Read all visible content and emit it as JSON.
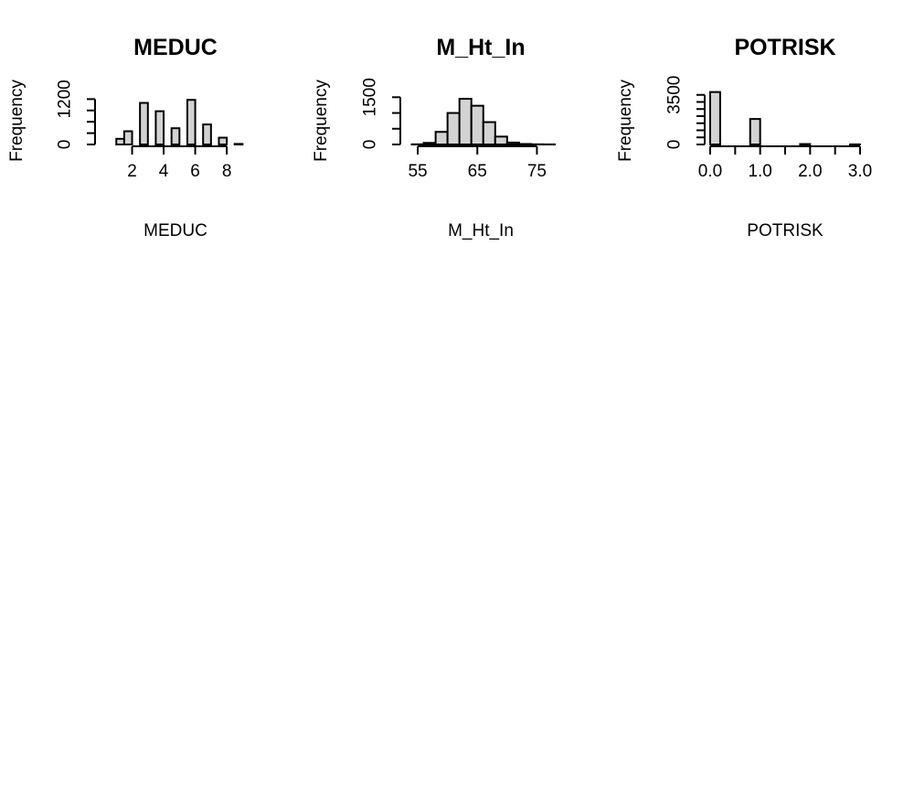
{
  "chart_data": [
    {
      "type": "bar",
      "title": "MEDUC",
      "xlabel": "MEDUC",
      "ylabel": "Frequency",
      "x_ticks": [
        2,
        4,
        6,
        8
      ],
      "x_tick_labels": [
        "2",
        "4",
        "6",
        "8"
      ],
      "y_ticks": [
        0,
        1200
      ],
      "y_tick_labels": [
        "0",
        "1200"
      ],
      "y_minor_ticks": [
        0,
        300,
        600,
        900,
        1200
      ],
      "xlim": [
        0,
        9.5
      ],
      "ylim": [
        0,
        1500
      ],
      "bins": [
        {
          "x0": 1.0,
          "x1": 1.5,
          "value": 150
        },
        {
          "x0": 1.5,
          "x1": 2.0,
          "value": 350
        },
        {
          "x0": 2.0,
          "x1": 2.5,
          "value": 0
        },
        {
          "x0": 2.5,
          "x1": 3.0,
          "value": 1100
        },
        {
          "x0": 3.0,
          "x1": 3.5,
          "value": 0
        },
        {
          "x0": 3.5,
          "x1": 4.0,
          "value": 880
        },
        {
          "x0": 4.0,
          "x1": 4.5,
          "value": 0
        },
        {
          "x0": 4.5,
          "x1": 5.0,
          "value": 430
        },
        {
          "x0": 5.0,
          "x1": 5.5,
          "value": 0
        },
        {
          "x0": 5.5,
          "x1": 6.0,
          "value": 1180
        },
        {
          "x0": 6.0,
          "x1": 6.5,
          "value": 0
        },
        {
          "x0": 6.5,
          "x1": 7.0,
          "value": 530
        },
        {
          "x0": 7.0,
          "x1": 7.5,
          "value": 0
        },
        {
          "x0": 7.5,
          "x1": 8.0,
          "value": 180
        },
        {
          "x0": 8.0,
          "x1": 8.5,
          "value": 0
        },
        {
          "x0": 8.5,
          "x1": 9.0,
          "value": 15
        }
      ]
    },
    {
      "type": "bar",
      "title": "M_Ht_In",
      "xlabel": "M_Ht_In",
      "ylabel": "Frequency",
      "x_ticks": [
        55,
        65,
        75
      ],
      "x_tick_labels": [
        "55",
        "65",
        "75"
      ],
      "y_ticks": [
        0,
        1500
      ],
      "y_tick_labels": [
        "0",
        "1500"
      ],
      "y_minor_ticks": [
        0,
        500,
        1000,
        1500
      ],
      "xlim": [
        53,
        78
      ],
      "ylim": [
        0,
        1800
      ],
      "bins": [
        {
          "x0": 54,
          "x1": 56,
          "value": 5
        },
        {
          "x0": 56,
          "x1": 58,
          "value": 50
        },
        {
          "x0": 58,
          "x1": 60,
          "value": 400
        },
        {
          "x0": 60,
          "x1": 62,
          "value": 1000
        },
        {
          "x0": 62,
          "x1": 64,
          "value": 1450
        },
        {
          "x0": 64,
          "x1": 66,
          "value": 1230
        },
        {
          "x0": 66,
          "x1": 68,
          "value": 710
        },
        {
          "x0": 68,
          "x1": 70,
          "value": 250
        },
        {
          "x0": 70,
          "x1": 72,
          "value": 60
        },
        {
          "x0": 72,
          "x1": 74,
          "value": 15
        },
        {
          "x0": 74,
          "x1": 76,
          "value": 5
        },
        {
          "x0": 76,
          "x1": 78,
          "value": 2
        }
      ]
    },
    {
      "type": "bar",
      "title": "POTRISK",
      "xlabel": "POTRISK",
      "ylabel": "Frequency",
      "x_ticks": [
        0.0,
        0.5,
        1.0,
        1.5,
        2.0,
        2.5,
        3.0
      ],
      "x_tick_labels": [
        "0.0",
        "",
        "1.0",
        "",
        "2.0",
        "",
        "3.0"
      ],
      "y_ticks": [
        0,
        3500
      ],
      "y_tick_labels": [
        "0",
        "3500"
      ],
      "y_minor_ticks": [
        0,
        500,
        1000,
        1500,
        2000,
        2500,
        3000,
        3500
      ],
      "xlim": [
        0,
        3.0
      ],
      "ylim": [
        0,
        4000
      ],
      "bins": [
        {
          "x0": 0.0,
          "x1": 0.2,
          "value": 3700
        },
        {
          "x0": 0.2,
          "x1": 0.4,
          "value": 0
        },
        {
          "x0": 0.4,
          "x1": 0.6,
          "value": 0
        },
        {
          "x0": 0.6,
          "x1": 0.8,
          "value": 0
        },
        {
          "x0": 0.8,
          "x1": 1.0,
          "value": 1800
        },
        {
          "x0": 1.0,
          "x1": 1.2,
          "value": 0
        },
        {
          "x0": 1.2,
          "x1": 1.4,
          "value": 0
        },
        {
          "x0": 1.4,
          "x1": 1.6,
          "value": 0
        },
        {
          "x0": 1.6,
          "x1": 1.8,
          "value": 0
        },
        {
          "x0": 1.8,
          "x1": 2.0,
          "value": 30
        },
        {
          "x0": 2.0,
          "x1": 2.2,
          "value": 0
        },
        {
          "x0": 2.2,
          "x1": 2.4,
          "value": 0
        },
        {
          "x0": 2.4,
          "x1": 2.6,
          "value": 0
        },
        {
          "x0": 2.6,
          "x1": 2.8,
          "value": 0
        },
        {
          "x0": 2.8,
          "x1": 3.0,
          "value": 5
        }
      ]
    }
  ]
}
